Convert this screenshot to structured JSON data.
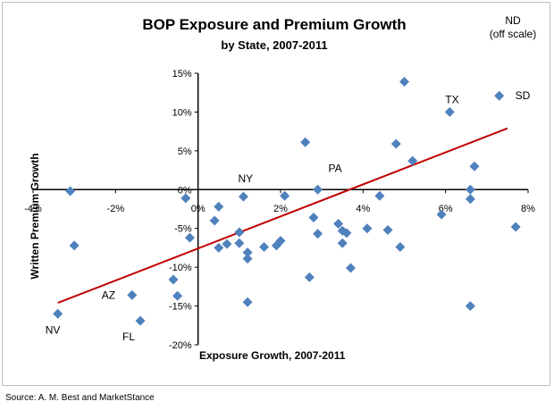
{
  "chart_data": {
    "type": "scatter",
    "title": "BOP Exposure and Premium Growth",
    "subtitle": "by State, 2007-2011",
    "xlabel": "Exposure Growth, 2007-2011",
    "ylabel": "Written Premium Growth",
    "xlim": [
      -4,
      8
    ],
    "ylim": [
      -20,
      15
    ],
    "x_ticks": [
      "-4%",
      "-2%",
      "0%",
      "2%",
      "4%",
      "6%",
      "8%"
    ],
    "y_ticks": [
      "15%",
      "10%",
      "5%",
      "0%",
      "-5%",
      "-10%",
      "-15%",
      "-20%"
    ],
    "grid": false,
    "marker_color": "#4f81bd",
    "trendline": {
      "color": "#c00000",
      "start": [
        -3.4,
        -14.6
      ],
      "end": [
        7.5,
        7.9
      ]
    },
    "annotation": "ND\n(off scale)",
    "points": [
      {
        "x": -3.1,
        "y": -0.2
      },
      {
        "x": -3.0,
        "y": -7.2
      },
      {
        "x": -3.4,
        "y": -16.0,
        "label": "NV"
      },
      {
        "x": -1.6,
        "y": -13.6,
        "label": "AZ"
      },
      {
        "x": -1.4,
        "y": -16.9,
        "label": "FL"
      },
      {
        "x": -0.6,
        "y": -11.6
      },
      {
        "x": -0.5,
        "y": -13.7
      },
      {
        "x": -0.3,
        "y": -1.1
      },
      {
        "x": -0.2,
        "y": -6.2
      },
      {
        "x": 0.4,
        "y": -4.0
      },
      {
        "x": 0.5,
        "y": -2.2
      },
      {
        "x": 0.5,
        "y": -7.5
      },
      {
        "x": 0.7,
        "y": -7.0
      },
      {
        "x": 1.0,
        "y": -5.5
      },
      {
        "x": 1.0,
        "y": -6.9
      },
      {
        "x": 1.1,
        "y": -0.9,
        "label": "NY"
      },
      {
        "x": 1.2,
        "y": -8.9
      },
      {
        "x": 1.2,
        "y": -8.1
      },
      {
        "x": 1.2,
        "y": -14.5
      },
      {
        "x": 1.6,
        "y": -7.4
      },
      {
        "x": 1.9,
        "y": -7.2
      },
      {
        "x": 2.0,
        "y": -6.6
      },
      {
        "x": 2.1,
        "y": -0.8
      },
      {
        "x": 2.6,
        "y": 6.1
      },
      {
        "x": 2.7,
        "y": -11.3
      },
      {
        "x": 2.8,
        "y": -3.6
      },
      {
        "x": 2.9,
        "y": -5.7
      },
      {
        "x": 2.9,
        "y": 0.0,
        "label": "PA"
      },
      {
        "x": 3.4,
        "y": -4.4
      },
      {
        "x": 3.5,
        "y": -5.3
      },
      {
        "x": 3.5,
        "y": -6.9
      },
      {
        "x": 3.6,
        "y": -5.6
      },
      {
        "x": 3.7,
        "y": -10.1
      },
      {
        "x": 4.1,
        "y": -5.0
      },
      {
        "x": 4.4,
        "y": -0.8
      },
      {
        "x": 4.6,
        "y": -5.2
      },
      {
        "x": 4.8,
        "y": 5.9
      },
      {
        "x": 4.9,
        "y": -7.4
      },
      {
        "x": 5.0,
        "y": 13.9
      },
      {
        "x": 5.2,
        "y": 3.7
      },
      {
        "x": 5.9,
        "y": -3.2
      },
      {
        "x": 6.1,
        "y": 10.0,
        "label": "TX"
      },
      {
        "x": 6.6,
        "y": 0.0
      },
      {
        "x": 6.6,
        "y": -1.2
      },
      {
        "x": 6.7,
        "y": 3.0
      },
      {
        "x": 6.6,
        "y": -15.0
      },
      {
        "x": 7.3,
        "y": 12.1,
        "label": "SD"
      },
      {
        "x": 7.7,
        "y": -4.8
      }
    ]
  },
  "source": "Source:  A. M. Best and MarketStance"
}
